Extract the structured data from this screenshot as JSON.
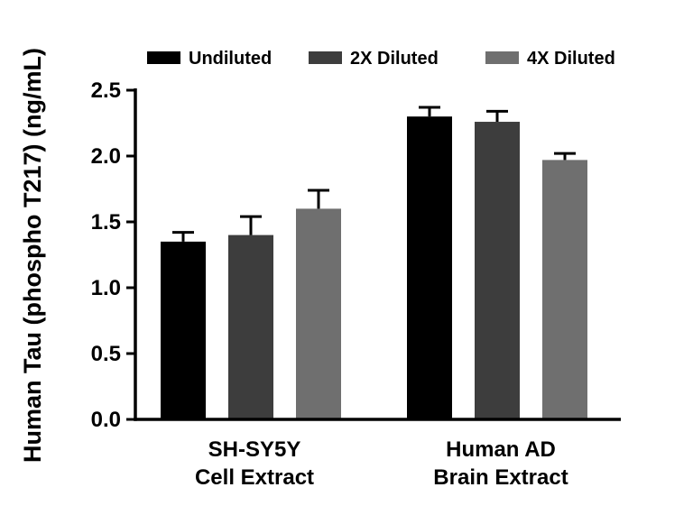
{
  "chart_data": {
    "type": "bar",
    "title": "",
    "xlabel": "",
    "ylabel": "Human Tau (phospho T217) (ng/mL)",
    "ylim": [
      0,
      2.5
    ],
    "yticks": [
      0.0,
      0.5,
      1.0,
      1.5,
      2.0,
      2.5
    ],
    "ytick_labels": [
      "0.0",
      "0.5",
      "1.0",
      "1.5",
      "2.0",
      "2.5"
    ],
    "grid": false,
    "legend_position": "top",
    "categories": [
      [
        "SH-SY5Y",
        "Cell Extract"
      ],
      [
        "Human AD",
        "Brain Extract"
      ]
    ],
    "series": [
      {
        "name": "Undiluted",
        "color": "#000000",
        "values": [
          1.35,
          2.3
        ],
        "errors": [
          0.07,
          0.07
        ]
      },
      {
        "name": "2X Diluted",
        "color": "#3d3d3d",
        "values": [
          1.4,
          2.26
        ],
        "errors": [
          0.14,
          0.08
        ]
      },
      {
        "name": "4X Diluted",
        "color": "#6f6f6f",
        "values": [
          1.6,
          1.97
        ],
        "errors": [
          0.14,
          0.05
        ]
      }
    ],
    "colors": {
      "axis": "#000000",
      "error_bar": "#000000",
      "background": "#ffffff"
    }
  }
}
